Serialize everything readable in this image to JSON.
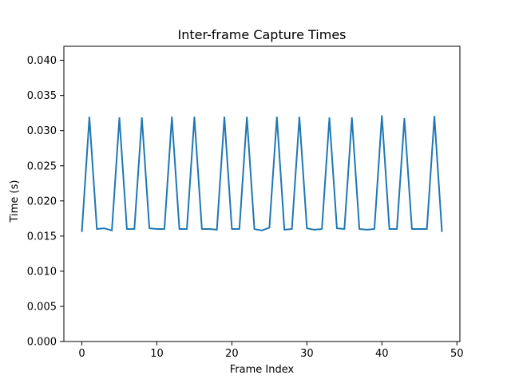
{
  "chart_data": {
    "type": "line",
    "title": "Inter-frame Capture Times",
    "xlabel": "Frame Index",
    "ylabel": "Time (s)",
    "xlim": [
      -2.4,
      50.4
    ],
    "ylim": [
      0.0,
      0.042
    ],
    "x_ticks": [
      0,
      10,
      20,
      30,
      40,
      50
    ],
    "y_ticks": [
      0.0,
      0.005,
      0.01,
      0.015,
      0.02,
      0.025,
      0.03,
      0.035,
      0.04
    ],
    "x_tick_labels": [
      "0",
      "10",
      "20",
      "30",
      "40",
      "50"
    ],
    "y_tick_labels": [
      "0.000",
      "0.005",
      "0.010",
      "0.015",
      "0.020",
      "0.025",
      "0.030",
      "0.035",
      "0.040"
    ],
    "grid": false,
    "series": [
      {
        "color": "#1f77b4",
        "x": [
          0,
          1,
          2,
          3,
          4,
          5,
          6,
          7,
          8,
          9,
          10,
          11,
          12,
          13,
          14,
          15,
          16,
          17,
          18,
          19,
          20,
          21,
          22,
          23,
          24,
          25,
          26,
          27,
          28,
          29,
          30,
          31,
          32,
          33,
          34,
          35,
          36,
          37,
          38,
          39,
          40,
          41,
          42,
          43,
          44,
          45,
          46,
          47,
          48
        ],
        "y": [
          0.0157,
          0.0319,
          0.016,
          0.0161,
          0.0158,
          0.0318,
          0.016,
          0.016,
          0.0318,
          0.0161,
          0.016,
          0.016,
          0.0319,
          0.016,
          0.016,
          0.0319,
          0.016,
          0.016,
          0.0159,
          0.0319,
          0.016,
          0.016,
          0.0319,
          0.016,
          0.0158,
          0.0162,
          0.0319,
          0.0159,
          0.016,
          0.0319,
          0.0161,
          0.0159,
          0.016,
          0.0318,
          0.0161,
          0.016,
          0.0318,
          0.016,
          0.0159,
          0.016,
          0.0321,
          0.016,
          0.016,
          0.0317,
          0.016,
          0.016,
          0.016,
          0.032,
          0.0157
        ]
      }
    ]
  }
}
